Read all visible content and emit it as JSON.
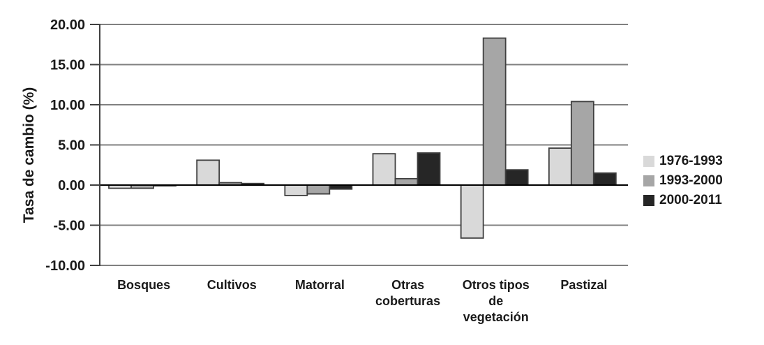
{
  "chart_data": {
    "type": "bar",
    "title": "",
    "xlabel": "",
    "ylabel": "Tasa de cambio (%)",
    "ylim": [
      -10,
      20
    ],
    "grid": "horizontal",
    "legend_position": "right",
    "yticks": [
      "20.00",
      "15.00",
      "10.00",
      "5.00",
      "0.00",
      "-5.00",
      "-10.00"
    ],
    "ytick_values": [
      20,
      15,
      10,
      5,
      0,
      -5,
      -10
    ],
    "categories": [
      "Bosques",
      "Cultivos",
      "Matorral",
      "Otras coberturas",
      "Otros tipos de vegetación",
      "Pastizal"
    ],
    "categories_wrapped": [
      [
        "Bosques"
      ],
      [
        "Cultivos"
      ],
      [
        "Matorral"
      ],
      [
        "Otras",
        "coberturas"
      ],
      [
        "Otros tipos",
        "de",
        "vegetación"
      ],
      [
        "Pastizal"
      ]
    ],
    "series": [
      {
        "name": "1976-1993",
        "color": "#d9d9d9",
        "values": [
          -0.4,
          3.1,
          -1.3,
          3.9,
          -6.6,
          4.6
        ]
      },
      {
        "name": "1993-2000",
        "color": "#a6a6a6",
        "values": [
          -0.4,
          0.3,
          -1.1,
          0.8,
          18.3,
          10.4
        ]
      },
      {
        "name": "2000-2011",
        "color": "#262626",
        "values": [
          -0.1,
          0.2,
          -0.5,
          4.0,
          1.9,
          1.5
        ]
      }
    ],
    "colors": {
      "background": "#ffffff",
      "gridline": "#808080",
      "zero_line": "#000000",
      "axis_line": "#404040",
      "bar_border": "#3f3f3f",
      "text": "#1a1a1a"
    }
  }
}
